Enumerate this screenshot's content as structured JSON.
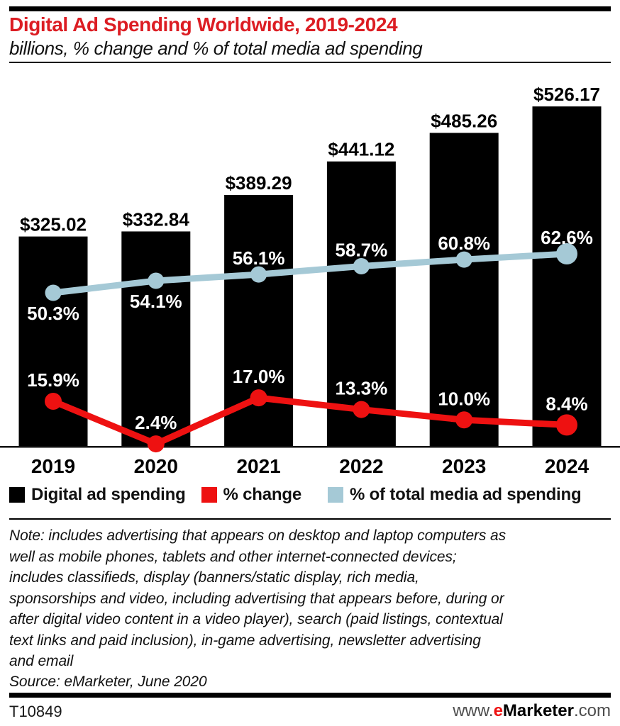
{
  "header": {
    "title": "Digital Ad Spending Worldwide, 2019-2024",
    "subtitle": "billions, % change and % of total media ad spending"
  },
  "colors": {
    "title_red": "#dc1d23",
    "line_red": "#ee1111",
    "line_blue": "#a5c9d6",
    "bar_black": "#000000",
    "footer_gray": "#4d4d4d"
  },
  "chart_data": {
    "type": "bar",
    "categories": [
      "2019",
      "2020",
      "2021",
      "2022",
      "2023",
      "2024"
    ],
    "series": [
      {
        "name": "Digital ad spending",
        "type": "bar",
        "unit": "billions USD",
        "values": [
          325.02,
          332.84,
          389.29,
          441.12,
          485.26,
          526.17
        ],
        "labels": [
          "$325.02",
          "$332.84",
          "$389.29",
          "$441.12",
          "$485.26",
          "$526.17"
        ],
        "color": "#000000"
      },
      {
        "name": "% change",
        "type": "line",
        "unit": "percent",
        "values": [
          15.9,
          2.4,
          17.0,
          13.3,
          10.0,
          8.4
        ],
        "labels": [
          "15.9%",
          "2.4%",
          "17.0%",
          "13.3%",
          "10.0%",
          "8.4%"
        ],
        "color": "#ee1111"
      },
      {
        "name": "% of total media ad spending",
        "type": "line",
        "unit": "percent",
        "values": [
          50.3,
          54.1,
          56.1,
          58.7,
          60.8,
          62.6
        ],
        "labels": [
          "50.3%",
          "54.1%",
          "56.1%",
          "58.7%",
          "60.8%",
          "62.6%"
        ],
        "color": "#a5c9d6"
      }
    ],
    "title": "Digital Ad Spending Worldwide, 2019-2024",
    "subtitle": "billions, % change and % of total media ad spending",
    "xlabel": "",
    "ylabel": "",
    "grid": false,
    "legend_position": "bottom",
    "value_labels_shown": true
  },
  "legend": {
    "items": [
      {
        "label": "Digital ad spending",
        "color": "#000000"
      },
      {
        "label": "% change",
        "color": "#ee1111"
      },
      {
        "label": "% of total media ad spending",
        "color": "#a5c9d6"
      }
    ]
  },
  "note": {
    "lines": [
      "Note: includes advertising that appears on desktop and laptop computers as",
      "well as mobile phones, tablets and other internet-connected devices;",
      "includes classifieds, display (banners/static display, rich media,",
      "sponsorships and video, including advertising that appears before, during or",
      "after digital video content in a video player), search (paid listings, contextual",
      "text links and paid inclusion), in-game advertising, newsletter advertising",
      "and email"
    ],
    "source": "Source: eMarketer, June 2020"
  },
  "footer": {
    "id": "T10849",
    "site": {
      "prefix": "www.",
      "brand_e": "e",
      "brand_rest": "Marketer",
      "suffix": ".com"
    }
  }
}
